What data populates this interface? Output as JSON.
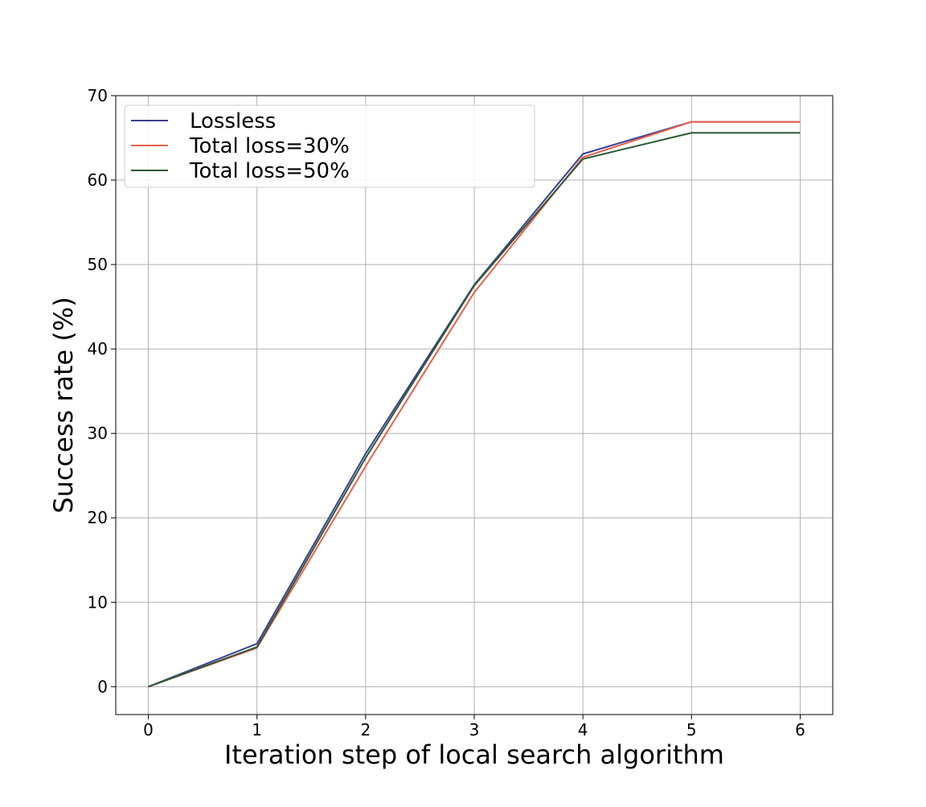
{
  "chart_data": {
    "type": "line",
    "xlabel": "Iteration step of local search algorithm",
    "ylabel": "Success rate (%)",
    "xlim": [
      -0.3,
      6.3
    ],
    "ylim": [
      -3.3,
      70
    ],
    "xticks": [
      0,
      1,
      2,
      3,
      4,
      5,
      6
    ],
    "yticks": [
      0,
      10,
      20,
      30,
      40,
      50,
      60,
      70
    ],
    "grid": true,
    "legend_position": "upper-left",
    "x": [
      0,
      1,
      2,
      3,
      4,
      5,
      6
    ],
    "series": [
      {
        "name": "Lossless",
        "color": "#3b3f94",
        "values": [
          0,
          5.1,
          27.6,
          47.6,
          63.1,
          66.9,
          66.9
        ]
      },
      {
        "name": "Total loss=30%",
        "color": "#e8604c",
        "values": [
          0,
          4.6,
          26.1,
          46.7,
          62.7,
          66.9,
          66.9
        ]
      },
      {
        "name": "Total loss=50%",
        "color": "#2d5a35",
        "values": [
          0,
          4.7,
          27.1,
          47.5,
          62.5,
          65.6,
          65.6
        ]
      }
    ]
  }
}
